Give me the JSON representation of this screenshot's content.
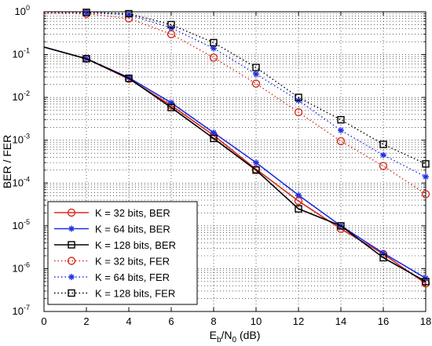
{
  "chart_data": {
    "type": "line",
    "xlabel": {
      "main": "E",
      "sub1": "b",
      "mid": "/N",
      "sub2": "0",
      "tail": " (dB)"
    },
    "ylabel": "BER / FER",
    "xlim": [
      0,
      18
    ],
    "ylim": [
      1e-07,
      1
    ],
    "yscale": "log",
    "grid": true,
    "legend_position": "bottom-left",
    "x_ticks": [
      "0",
      "2",
      "4",
      "6",
      "8",
      "10",
      "12",
      "14",
      "16",
      "18"
    ],
    "y_ticks": [
      {
        "base": "10",
        "exp": "0"
      },
      {
        "base": "10",
        "exp": "-1"
      },
      {
        "base": "10",
        "exp": "-2"
      },
      {
        "base": "10",
        "exp": "-3"
      },
      {
        "base": "10",
        "exp": "-4"
      },
      {
        "base": "10",
        "exp": "-5"
      },
      {
        "base": "10",
        "exp": "-6"
      },
      {
        "base": "10",
        "exp": "-7"
      }
    ],
    "series": [
      {
        "name": "K = 32 bits, BER",
        "color": "#d62e1e",
        "marker": "circle",
        "dash": "solid",
        "x": [
          0,
          2,
          4,
          6,
          8,
          10,
          12,
          14,
          16,
          18
        ],
        "y": [
          0.15,
          0.08,
          0.027,
          0.0065,
          0.0013,
          0.00021,
          3.8e-05,
          8.5e-06,
          2.2e-06,
          4.5e-07
        ]
      },
      {
        "name": "K = 64 bits, BER",
        "color": "#1f2ee0",
        "marker": "star",
        "dash": "solid",
        "x": [
          0,
          2,
          4,
          6,
          8,
          10,
          12,
          14,
          16,
          18
        ],
        "y": [
          0.15,
          0.08,
          0.029,
          0.0075,
          0.0015,
          0.0003,
          5.2e-05,
          1e-05,
          2.3e-06,
          6e-07
        ]
      },
      {
        "name": "K = 128 bits, BER",
        "color": "#000000",
        "marker": "square",
        "dash": "solid",
        "x": [
          0,
          2,
          4,
          6,
          8,
          10,
          12,
          14,
          16,
          18
        ],
        "y": [
          0.15,
          0.08,
          0.028,
          0.0058,
          0.0011,
          0.0002,
          2.5e-05,
          1e-05,
          1.8e-06,
          5e-07
        ]
      },
      {
        "name": "K = 32 bits, FER",
        "color": "#d62e1e",
        "marker": "circle",
        "dash": "dotted",
        "x": [
          0,
          2,
          4,
          6,
          8,
          10,
          12,
          14,
          16,
          18
        ],
        "y": [
          0.92,
          0.9,
          0.7,
          0.3,
          0.085,
          0.021,
          0.0045,
          0.00095,
          0.00025,
          5.5e-05
        ]
      },
      {
        "name": "K = 64 bits, FER",
        "color": "#1f2ee0",
        "marker": "star",
        "dash": "dotted",
        "x": [
          0,
          2,
          4,
          6,
          8,
          10,
          12,
          14,
          16,
          18
        ],
        "y": [
          0.98,
          0.95,
          0.85,
          0.42,
          0.14,
          0.035,
          0.0085,
          0.0017,
          0.00045,
          0.00014
        ]
      },
      {
        "name": "K = 128 bits, FER",
        "color": "#000000",
        "marker": "square",
        "dash": "dotted",
        "x": [
          0,
          2,
          4,
          6,
          8,
          10,
          12,
          14,
          16,
          18
        ],
        "y": [
          0.99,
          0.97,
          0.9,
          0.5,
          0.19,
          0.05,
          0.01,
          0.003,
          0.0008,
          0.00028
        ]
      }
    ]
  }
}
